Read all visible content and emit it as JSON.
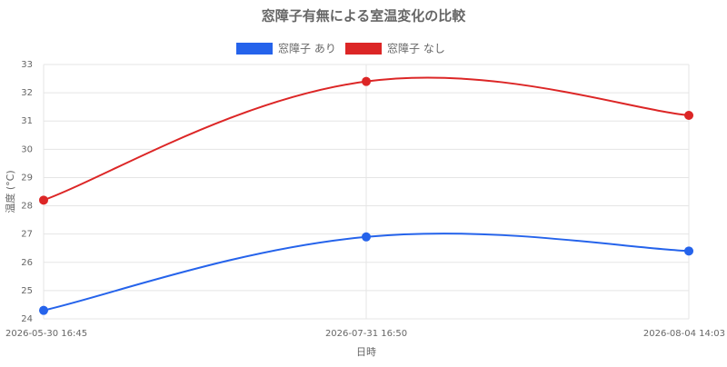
{
  "chart_data": {
    "type": "line",
    "title": "窓障子有無による室温変化の比較",
    "x_label": "日時",
    "y_label": "温度 (°C)",
    "categories": [
      "2026-05-30 16:45",
      "2026-07-31 16:50",
      "2026-08-04 14:03"
    ],
    "series": [
      {
        "name": "窓障子 あり",
        "color": "#2563eb",
        "values": [
          24.3,
          26.9,
          26.4
        ]
      },
      {
        "name": "窓障子 なし",
        "color": "#dc2626",
        "values": [
          28.2,
          32.4,
          31.2
        ]
      }
    ],
    "ylim": [
      24,
      33
    ],
    "yticks": [
      24,
      25,
      26,
      27,
      28,
      29,
      30,
      31,
      32,
      33
    ],
    "grid": true,
    "legend": "top"
  }
}
